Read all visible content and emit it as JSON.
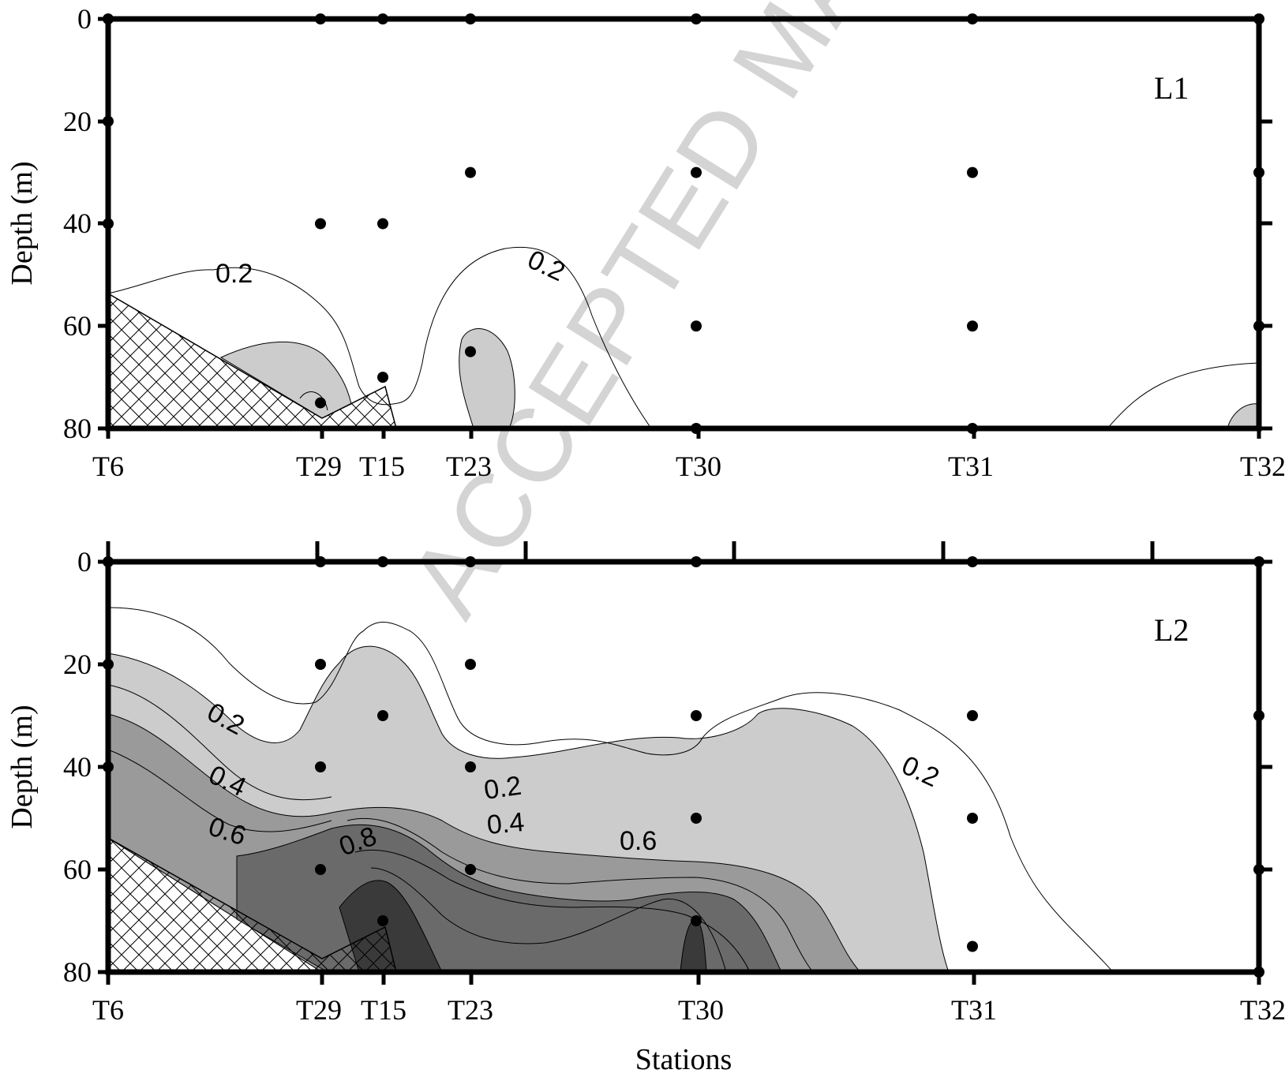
{
  "watermark": "ACCEPTED MANUSCRIPT",
  "colors": {
    "level_0_2": "#cccccc",
    "level_0_4": "#9a9a9a",
    "level_0_6": "#6a6a6a",
    "level_0_8": "#3a3a3a",
    "bathymetry_hatch": "#000000",
    "axis": "#000000"
  },
  "chart_data": [
    {
      "type": "contour",
      "panel_label": "L1",
      "ylabel": "Depth (m)",
      "xlabel": "",
      "ylim": [
        80,
        0
      ],
      "yticks": [
        0,
        20,
        40,
        60,
        80
      ],
      "stations": [
        "T6",
        "T29",
        "T15",
        "T23",
        "T30",
        "T31",
        "T32"
      ],
      "contour_levels": [
        0.2
      ],
      "contour_labels": [
        {
          "text": "0.2",
          "station_between": [
            "T6",
            "T29"
          ],
          "depth": 53
        },
        {
          "text": "0.2",
          "station_between": [
            "T23",
            "T30"
          ],
          "depth": 50
        }
      ],
      "sample_points": [
        {
          "station": "T6",
          "depths": [
            0,
            20,
            40
          ]
        },
        {
          "station": "T29",
          "depths": [
            0,
            40,
            75
          ]
        },
        {
          "station": "T15",
          "depths": [
            0,
            40,
            70
          ]
        },
        {
          "station": "T23",
          "depths": [
            0,
            30,
            65
          ]
        },
        {
          "station": "T30",
          "depths": [
            0,
            30,
            60,
            80
          ]
        },
        {
          "station": "T31",
          "depths": [
            0,
            30,
            60,
            80
          ]
        },
        {
          "station": "T32",
          "depths": [
            0,
            30,
            60
          ]
        }
      ]
    },
    {
      "type": "contour",
      "panel_label": "L2",
      "ylabel": "Depth (m)",
      "xlabel": "Stations",
      "ylim": [
        80,
        0
      ],
      "yticks": [
        0,
        20,
        40,
        60,
        80
      ],
      "stations": [
        "T6",
        "T29",
        "T15",
        "T23",
        "T30",
        "T31",
        "T32"
      ],
      "contour_levels": [
        0.2,
        0.4,
        0.6,
        0.8
      ],
      "contour_labels": [
        {
          "text": "0.2",
          "station_between": [
            "T6",
            "T29"
          ],
          "depth": 32
        },
        {
          "text": "0.4",
          "station_between": [
            "T6",
            "T29"
          ],
          "depth": 42
        },
        {
          "text": "0.6",
          "station_between": [
            "T6",
            "T29"
          ],
          "depth": 51
        },
        {
          "text": "0.8",
          "station_between": [
            "T29",
            "T15"
          ],
          "depth": 55
        },
        {
          "text": "0.2",
          "station_between": [
            "T23",
            "T30"
          ],
          "depth": 44
        },
        {
          "text": "0.4",
          "station_between": [
            "T23",
            "T30"
          ],
          "depth": 51
        },
        {
          "text": "0.6",
          "station_between": [
            "T23",
            "T30"
          ],
          "depth": 55
        },
        {
          "text": "0.2",
          "station_between": [
            "T30",
            "T31"
          ],
          "depth": 42
        }
      ],
      "sample_points": [
        {
          "station": "T6",
          "depths": [
            0,
            20,
            40
          ]
        },
        {
          "station": "T29",
          "depths": [
            0,
            20,
            40,
            60
          ]
        },
        {
          "station": "T15",
          "depths": [
            0,
            30,
            70
          ]
        },
        {
          "station": "T23",
          "depths": [
            0,
            20,
            40,
            60
          ]
        },
        {
          "station": "T30",
          "depths": [
            0,
            30,
            50,
            70
          ]
        },
        {
          "station": "T31",
          "depths": [
            0,
            30,
            50,
            75
          ]
        },
        {
          "station": "T32",
          "depths": [
            0,
            30,
            60,
            80
          ]
        }
      ]
    }
  ]
}
